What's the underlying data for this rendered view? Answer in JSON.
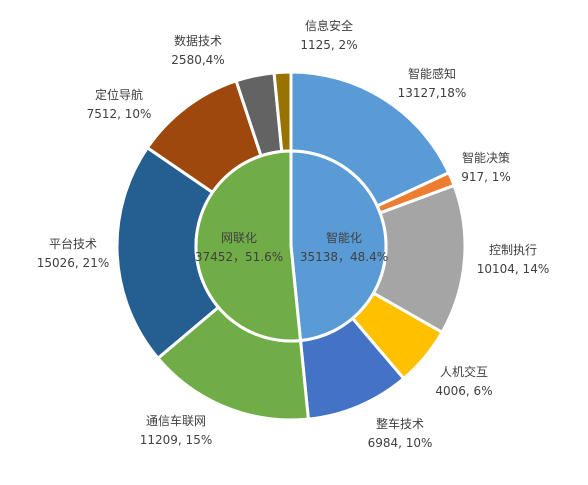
{
  "chart_data": {
    "type": "pie",
    "inner_ring": {
      "slices": [
        {
          "name": "智能化",
          "value": 35138,
          "label_value": "35138",
          "percent": "48.4%",
          "color": "#5b9bd5"
        },
        {
          "name": "网联化",
          "value": 37452,
          "label_value": "37452",
          "percent": "51.6%",
          "color": "#70ad47"
        }
      ]
    },
    "outer_ring": {
      "slices": [
        {
          "name": "智能感知",
          "value": 13127,
          "label_value": "13127",
          "percent": "18%",
          "color": "#5b9bd5"
        },
        {
          "name": "智能决策",
          "value": 917,
          "label_value": "917",
          "percent": "1%",
          "color": "#ed7d31"
        },
        {
          "name": "控制执行",
          "value": 10104,
          "label_value": "10104",
          "percent": "14%",
          "color": "#a5a5a5"
        },
        {
          "name": "人机交互",
          "value": 4006,
          "label_value": "4006",
          "percent": "6%",
          "color": "#ffc000"
        },
        {
          "name": "整车技术",
          "value": 6984,
          "label_value": "6984",
          "percent": "10%",
          "color": "#4472c4"
        },
        {
          "name": "通信车联网",
          "value": 11209,
          "label_value": "11209",
          "percent": "15%",
          "color": "#70ad47"
        },
        {
          "name": "平台技术",
          "value": 15026,
          "label_value": "15026",
          "percent": "21%",
          "color": "#255e91"
        },
        {
          "name": "定位导航",
          "value": 7512,
          "label_value": "7512",
          "percent": "10%",
          "color": "#9e480e"
        },
        {
          "name": "数据技术",
          "value": 2580,
          "label_value": "2580",
          "percent": "4%",
          "color": "#636363"
        },
        {
          "name": "信息安全",
          "value": 1125,
          "label_value": "1125",
          "percent": "2%",
          "color": "#997300"
        }
      ]
    },
    "label_texts": {
      "inner": [
        {
          "line1": "智能化",
          "line2": "35138，48.4%"
        },
        {
          "line1": "网联化",
          "line2": "37452，51.6%"
        }
      ],
      "outer": [
        {
          "line1": "智能感知",
          "line2": "13127,18%"
        },
        {
          "line1": "智能决策",
          "line2": "917, 1%"
        },
        {
          "line1": "控制执行",
          "line2": "10104, 14%"
        },
        {
          "line1": "人机交互",
          "line2": "4006, 6%"
        },
        {
          "line1": "整车技术",
          "line2": "6984, 10%"
        },
        {
          "line1": "通信车联网",
          "line2": "11209, 15%"
        },
        {
          "line1": "平台技术",
          "line2": "15026, 21%"
        },
        {
          "line1": "定位导航",
          "line2": "7512, 10%"
        },
        {
          "line1": "数据技术",
          "line2": "2580,4%"
        },
        {
          "line1": "信息安全",
          "line2": "1125, 2%"
        }
      ]
    }
  }
}
